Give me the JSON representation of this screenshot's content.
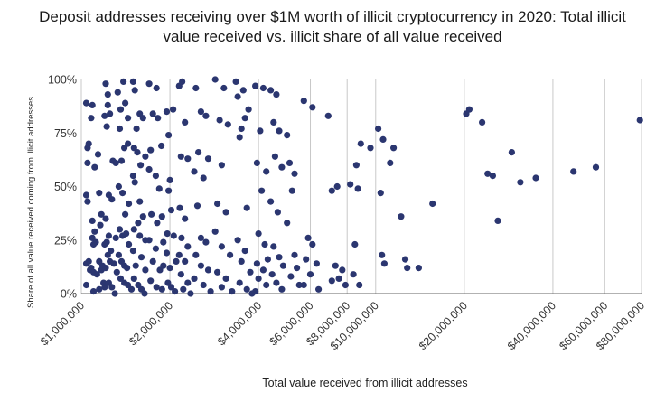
{
  "chart_data": {
    "type": "scatter",
    "title_lines": [
      "Deposit addresses receiving over $1M worth of illicit cryptocurrency in 2020: Total illicit",
      "value received vs. illicit share of all value received"
    ],
    "xlabel": "Total value received from illicit addresses",
    "ylabel": "Share of all value received coming from illicit addresses",
    "x_scale": "log",
    "xlim": [
      1000000,
      80000000
    ],
    "ylim": [
      0,
      100
    ],
    "grid": "vertical",
    "legend": "none",
    "colors": {
      "point": "#2b3670",
      "grid": "#c8c8c8",
      "axis": "#666666"
    },
    "x_ticks": [
      {
        "value": 1000000,
        "label": "$1,000,000"
      },
      {
        "value": 2000000,
        "label": "$2,000,000"
      },
      {
        "value": 4000000,
        "label": "$4,000,000"
      },
      {
        "value": 6000000,
        "label": "$6,000,000"
      },
      {
        "value": 8000000,
        "label": "$8,000,000"
      },
      {
        "value": 10000000,
        "label": "$10,000,000"
      },
      {
        "value": 20000000,
        "label": "$20,000,000"
      },
      {
        "value": 40000000,
        "label": "$40,000,000"
      },
      {
        "value": 60000000,
        "label": "$60,000,000"
      },
      {
        "value": 80000000,
        "label": "$80,000,000"
      }
    ],
    "y_ticks": [
      {
        "value": 0,
        "label": "0%"
      },
      {
        "value": 25,
        "label": "25%"
      },
      {
        "value": 50,
        "label": "50%"
      },
      {
        "value": 75,
        "label": "75%"
      },
      {
        "value": 100,
        "label": "100%"
      }
    ],
    "points": [
      [
        1040000,
        89
      ],
      [
        1090000,
        88
      ],
      [
        1060000,
        70
      ],
      [
        1050000,
        68
      ],
      [
        1080000,
        82
      ],
      [
        1050000,
        61
      ],
      [
        1110000,
        59
      ],
      [
        1140000,
        65
      ],
      [
        1040000,
        46
      ],
      [
        1050000,
        43
      ],
      [
        1150000,
        47
      ],
      [
        1090000,
        34
      ],
      [
        1170000,
        37
      ],
      [
        1110000,
        29
      ],
      [
        1160000,
        32
      ],
      [
        1090000,
        26
      ],
      [
        1120000,
        24
      ],
      [
        1100000,
        23
      ],
      [
        1060000,
        15
      ],
      [
        1040000,
        14
      ],
      [
        1080000,
        12
      ],
      [
        1070000,
        11
      ],
      [
        1100000,
        10
      ],
      [
        1130000,
        9
      ],
      [
        1150000,
        15
      ],
      [
        1180000,
        13
      ],
      [
        1170000,
        11
      ],
      [
        1040000,
        4
      ],
      [
        1100000,
        1
      ],
      [
        1150000,
        2
      ],
      [
        1190000,
        5
      ],
      [
        1200000,
        3
      ],
      [
        1210000,
        98
      ],
      [
        1230000,
        93
      ],
      [
        1230000,
        88
      ],
      [
        1250000,
        84
      ],
      [
        1200000,
        83
      ],
      [
        1220000,
        78
      ],
      [
        1280000,
        62
      ],
      [
        1310000,
        61
      ],
      [
        1240000,
        46
      ],
      [
        1270000,
        44
      ],
      [
        1210000,
        35
      ],
      [
        1240000,
        27
      ],
      [
        1310000,
        26
      ],
      [
        1220000,
        24
      ],
      [
        1200000,
        23
      ],
      [
        1260000,
        20
      ],
      [
        1230000,
        18
      ],
      [
        1250000,
        15
      ],
      [
        1210000,
        12
      ],
      [
        1290000,
        14
      ],
      [
        1320000,
        10
      ],
      [
        1240000,
        5
      ],
      [
        1270000,
        3
      ],
      [
        1300000,
        0
      ],
      [
        1330000,
        94
      ],
      [
        1390000,
        99
      ],
      [
        1360000,
        86
      ],
      [
        1410000,
        89
      ],
      [
        1440000,
        82
      ],
      [
        1350000,
        77
      ],
      [
        1400000,
        68
      ],
      [
        1440000,
        70
      ],
      [
        1370000,
        62
      ],
      [
        1340000,
        50
      ],
      [
        1380000,
        47
      ],
      [
        1410000,
        37
      ],
      [
        1450000,
        42
      ],
      [
        1350000,
        30
      ],
      [
        1380000,
        27
      ],
      [
        1420000,
        28
      ],
      [
        1450000,
        23
      ],
      [
        1340000,
        18
      ],
      [
        1370000,
        15
      ],
      [
        1400000,
        13
      ],
      [
        1430000,
        12
      ],
      [
        1360000,
        7
      ],
      [
        1400000,
        5
      ],
      [
        1440000,
        4
      ],
      [
        1480000,
        2
      ],
      [
        1500000,
        99
      ],
      [
        1520000,
        95
      ],
      [
        1580000,
        84
      ],
      [
        1620000,
        82
      ],
      [
        1540000,
        77
      ],
      [
        1510000,
        68
      ],
      [
        1550000,
        66
      ],
      [
        1590000,
        60
      ],
      [
        1650000,
        64
      ],
      [
        1500000,
        55
      ],
      [
        1520000,
        52
      ],
      [
        1580000,
        43
      ],
      [
        1620000,
        36
      ],
      [
        1560000,
        33
      ],
      [
        1510000,
        30
      ],
      [
        1580000,
        27
      ],
      [
        1650000,
        25
      ],
      [
        1500000,
        20
      ],
      [
        1600000,
        17
      ],
      [
        1530000,
        13
      ],
      [
        1650000,
        11
      ],
      [
        1510000,
        7
      ],
      [
        1560000,
        4
      ],
      [
        1600000,
        2
      ],
      [
        1640000,
        0
      ],
      [
        1700000,
        98
      ],
      [
        1800000,
        96
      ],
      [
        1750000,
        84
      ],
      [
        1820000,
        82
      ],
      [
        1720000,
        67
      ],
      [
        1870000,
        69
      ],
      [
        1700000,
        58
      ],
      [
        1790000,
        55
      ],
      [
        1840000,
        49
      ],
      [
        1730000,
        37
      ],
      [
        1810000,
        33
      ],
      [
        1880000,
        36
      ],
      [
        1700000,
        25
      ],
      [
        1790000,
        21
      ],
      [
        1900000,
        24
      ],
      [
        1750000,
        15
      ],
      [
        1850000,
        11
      ],
      [
        1900000,
        13
      ],
      [
        1720000,
        6
      ],
      [
        1800000,
        3
      ],
      [
        1880000,
        2
      ],
      [
        1950000,
        85
      ],
      [
        2050000,
        86
      ],
      [
        1980000,
        74
      ],
      [
        2000000,
        53
      ],
      [
        1980000,
        48
      ],
      [
        2020000,
        39
      ],
      [
        1960000,
        28
      ],
      [
        2060000,
        27
      ],
      [
        1950000,
        19
      ],
      [
        2000000,
        12
      ],
      [
        2100000,
        15
      ],
      [
        1970000,
        5
      ],
      [
        2020000,
        3
      ],
      [
        2080000,
        1
      ],
      [
        2150000,
        97
      ],
      [
        2200000,
        99
      ],
      [
        2250000,
        80
      ],
      [
        2180000,
        64
      ],
      [
        2300000,
        63
      ],
      [
        2160000,
        40
      ],
      [
        2250000,
        35
      ],
      [
        2190000,
        26
      ],
      [
        2300000,
        22
      ],
      [
        2150000,
        18
      ],
      [
        2250000,
        15
      ],
      [
        2180000,
        9
      ],
      [
        2300000,
        5
      ],
      [
        2220000,
        2
      ],
      [
        2350000,
        0
      ],
      [
        2450000,
        96
      ],
      [
        2550000,
        85
      ],
      [
        2650000,
        83
      ],
      [
        2500000,
        66
      ],
      [
        2700000,
        63
      ],
      [
        2420000,
        57
      ],
      [
        2600000,
        54
      ],
      [
        2480000,
        41
      ],
      [
        2550000,
        26
      ],
      [
        2650000,
        24
      ],
      [
        2450000,
        18
      ],
      [
        2550000,
        13
      ],
      [
        2700000,
        11
      ],
      [
        2420000,
        7
      ],
      [
        2600000,
        4
      ],
      [
        2750000,
        1
      ],
      [
        2850000,
        100
      ],
      [
        3050000,
        96
      ],
      [
        2950000,
        81
      ],
      [
        3150000,
        79
      ],
      [
        3000000,
        60
      ],
      [
        2900000,
        42
      ],
      [
        3100000,
        38
      ],
      [
        2850000,
        29
      ],
      [
        3000000,
        22
      ],
      [
        3200000,
        18
      ],
      [
        2900000,
        10
      ],
      [
        3100000,
        7
      ],
      [
        3000000,
        3
      ],
      [
        3250000,
        1
      ],
      [
        3350000,
        99
      ],
      [
        3550000,
        95
      ],
      [
        3400000,
        92
      ],
      [
        3600000,
        82
      ],
      [
        3500000,
        77
      ],
      [
        3450000,
        73
      ],
      [
        3700000,
        86
      ],
      [
        3650000,
        40
      ],
      [
        3400000,
        25
      ],
      [
        3600000,
        20
      ],
      [
        3500000,
        15
      ],
      [
        3750000,
        10
      ],
      [
        3450000,
        5
      ],
      [
        3650000,
        2
      ],
      [
        3800000,
        0
      ],
      [
        3900000,
        97
      ],
      [
        4150000,
        96
      ],
      [
        4050000,
        76
      ],
      [
        3950000,
        61
      ],
      [
        4250000,
        57
      ],
      [
        4100000,
        48
      ],
      [
        4000000,
        28
      ],
      [
        4200000,
        23
      ],
      [
        3950000,
        14
      ],
      [
        4150000,
        11
      ],
      [
        4300000,
        16
      ],
      [
        4000000,
        7
      ],
      [
        4250000,
        4
      ],
      [
        3900000,
        1
      ],
      [
        4400000,
        95
      ],
      [
        4600000,
        93
      ],
      [
        4500000,
        80
      ],
      [
        4700000,
        76
      ],
      [
        4550000,
        64
      ],
      [
        4800000,
        59
      ],
      [
        4400000,
        43
      ],
      [
        4650000,
        38
      ],
      [
        4500000,
        22
      ],
      [
        4700000,
        17
      ],
      [
        4850000,
        13
      ],
      [
        4450000,
        9
      ],
      [
        4600000,
        5
      ],
      [
        4800000,
        2
      ],
      [
        5000000,
        74
      ],
      [
        5100000,
        61
      ],
      [
        5300000,
        56
      ],
      [
        5200000,
        48
      ],
      [
        5000000,
        33
      ],
      [
        5300000,
        18
      ],
      [
        5400000,
        12
      ],
      [
        5150000,
        8
      ],
      [
        5500000,
        4
      ],
      [
        5700000,
        90
      ],
      [
        6100000,
        87
      ],
      [
        5900000,
        26
      ],
      [
        6100000,
        23
      ],
      [
        5800000,
        16
      ],
      [
        6300000,
        14
      ],
      [
        6000000,
        9
      ],
      [
        5700000,
        4
      ],
      [
        6400000,
        2
      ],
      [
        6900000,
        83
      ],
      [
        7100000,
        48
      ],
      [
        7400000,
        50
      ],
      [
        7300000,
        13
      ],
      [
        7700000,
        11
      ],
      [
        7100000,
        6
      ],
      [
        7500000,
        7
      ],
      [
        7900000,
        4
      ],
      [
        8200000,
        51
      ],
      [
        8600000,
        60
      ],
      [
        8700000,
        49
      ],
      [
        8500000,
        23
      ],
      [
        8900000,
        70
      ],
      [
        8400000,
        9
      ],
      [
        8800000,
        4
      ],
      [
        9600000,
        68
      ],
      [
        10200000,
        77
      ],
      [
        10400000,
        47
      ],
      [
        10600000,
        72
      ],
      [
        10500000,
        18
      ],
      [
        10700000,
        14
      ],
      [
        11200000,
        61
      ],
      [
        11500000,
        68
      ],
      [
        12200000,
        36
      ],
      [
        12600000,
        16
      ],
      [
        12800000,
        12
      ],
      [
        14000000,
        12
      ],
      [
        15600000,
        42
      ],
      [
        20300000,
        84
      ],
      [
        20800000,
        86
      ],
      [
        23000000,
        80
      ],
      [
        24000000,
        56
      ],
      [
        25000000,
        55
      ],
      [
        26000000,
        34
      ],
      [
        29000000,
        66
      ],
      [
        31000000,
        52
      ],
      [
        35000000,
        54
      ],
      [
        47000000,
        57
      ],
      [
        56000000,
        59
      ],
      [
        79000000,
        81
      ]
    ]
  }
}
